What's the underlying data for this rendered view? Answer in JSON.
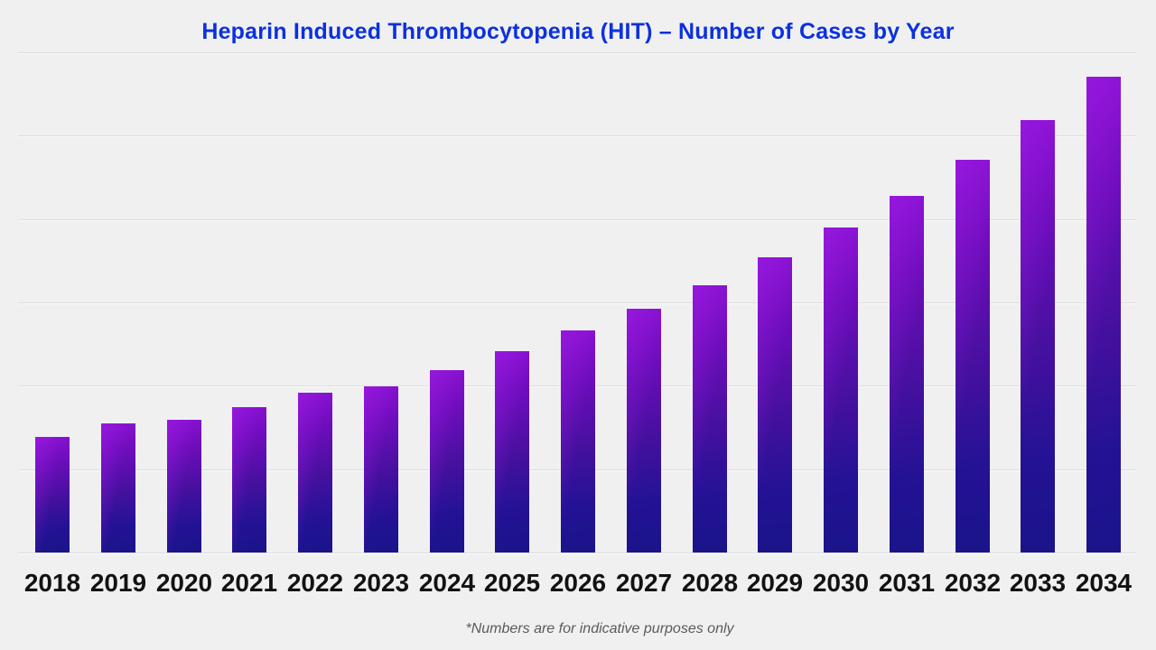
{
  "title": "Heparin Induced Thrombocytopenia (HIT) – Number of Cases by Year",
  "footnote": "*Numbers are for indicative purposes only",
  "colors": {
    "background": "#f0f0f1",
    "title_text": "#0c31dc",
    "bar_gradient_start": "#8a12d2",
    "bar_gradient_end": "#1a1489",
    "gridline": "#dcdcdd",
    "x_label_text": "#121212",
    "footnote_text": "#5a5a5a"
  },
  "chart_data": {
    "type": "bar",
    "title": "Heparin Induced Thrombocytopenia (HIT) – Number of Cases by Year",
    "categories": [
      "2018",
      "2019",
      "2020",
      "2021",
      "2022",
      "2023",
      "2024",
      "2025",
      "2026",
      "2027",
      "2028",
      "2029",
      "2030",
      "2031",
      "2032",
      "2033",
      "2034"
    ],
    "values": [
      139,
      155,
      159,
      174,
      192,
      199,
      219,
      241,
      266,
      292,
      321,
      354,
      390,
      428,
      471,
      519,
      571
    ],
    "xlabel": "",
    "ylabel": "",
    "ylim": [
      0,
      600
    ],
    "gridline_step": 100,
    "grid": "horizontal",
    "y_axis_tick_labels_visible": false,
    "legend": "none",
    "value_units": "relative (no y-axis tick labels shown; values estimated from gridlines)"
  }
}
